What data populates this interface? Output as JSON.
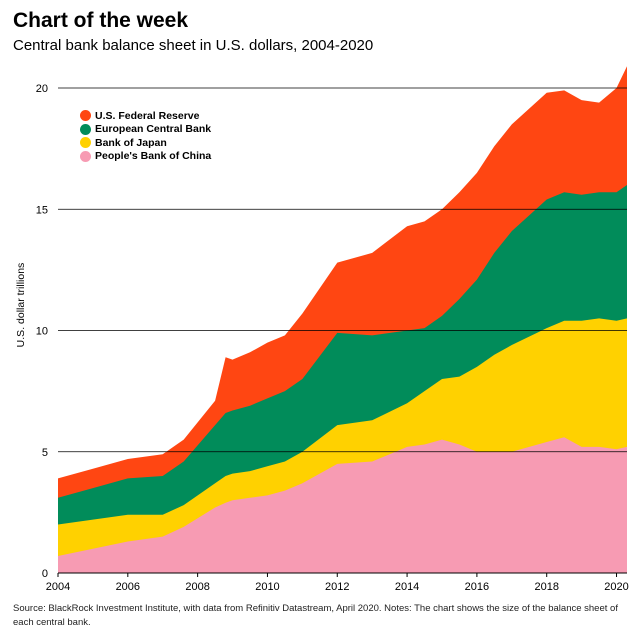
{
  "header": {
    "title": "Chart of the week",
    "subtitle": "Central bank balance sheet in U.S. dollars, 2004-2020"
  },
  "footer": {
    "source": "Source: BlackRock Investment Institute, with data from Refinitiv Datastream, April 2020. Notes: The chart shows the size of the balance sheet of each central bank."
  },
  "chart_data": {
    "type": "area",
    "stacked": true,
    "title": "Chart of the week",
    "subtitle": "Central bank balance sheet in U.S. dollars, 2004-2020",
    "ylabel": "U.S. dollar trillions",
    "xlabel": "",
    "xlim": [
      2004,
      2020.3
    ],
    "ylim": [
      0,
      21
    ],
    "x_ticks": [
      "2004",
      "2006",
      "2008",
      "2010",
      "2012",
      "2014",
      "2016",
      "2018",
      "2020"
    ],
    "y_ticks": [
      "0",
      "5",
      "10",
      "15",
      "20"
    ],
    "grid": "horizontal",
    "legend_position": "top-left",
    "x": [
      2004,
      2005,
      2006,
      2007,
      2007.6,
      2008.5,
      2008.8,
      2009,
      2009.5,
      2010,
      2010.5,
      2011,
      2012,
      2013,
      2014,
      2014.5,
      2015,
      2015.5,
      2016,
      2016.5,
      2017,
      2018,
      2018.5,
      2019,
      2019.5,
      2020,
      2020.3
    ],
    "series": [
      {
        "name": "People's Bank of China",
        "color": "#f79bb3",
        "values": [
          0.7,
          1.0,
          1.3,
          1.5,
          1.9,
          2.7,
          2.9,
          3.0,
          3.1,
          3.2,
          3.4,
          3.7,
          4.5,
          4.6,
          5.2,
          5.3,
          5.5,
          5.3,
          5.0,
          5.0,
          5.0,
          5.4,
          5.6,
          5.2,
          5.2,
          5.1,
          5.2
        ]
      },
      {
        "name": "Bank of Japan",
        "color": "#ffd100",
        "values": [
          1.3,
          1.2,
          1.1,
          0.9,
          0.9,
          1.0,
          1.1,
          1.1,
          1.1,
          1.2,
          1.2,
          1.3,
          1.6,
          1.7,
          1.8,
          2.2,
          2.5,
          2.8,
          3.5,
          4.0,
          4.4,
          4.7,
          4.8,
          5.2,
          5.3,
          5.3,
          5.3
        ]
      },
      {
        "name": "European Central Bank",
        "color": "#018c5a",
        "values": [
          1.1,
          1.3,
          1.5,
          1.6,
          1.8,
          2.4,
          2.6,
          2.6,
          2.7,
          2.8,
          2.9,
          3.0,
          3.8,
          3.5,
          3.0,
          2.6,
          2.6,
          3.2,
          3.6,
          4.2,
          4.7,
          5.3,
          5.3,
          5.2,
          5.2,
          5.3,
          5.5
        ]
      },
      {
        "name": "U.S. Federal Reserve",
        "color": "#ff4612",
        "values": [
          0.8,
          0.8,
          0.8,
          0.9,
          0.9,
          1.0,
          2.3,
          2.1,
          2.2,
          2.3,
          2.3,
          2.7,
          2.9,
          3.4,
          4.3,
          4.4,
          4.4,
          4.4,
          4.4,
          4.4,
          4.4,
          4.4,
          4.2,
          3.9,
          3.7,
          4.3,
          4.9
        ]
      }
    ]
  }
}
